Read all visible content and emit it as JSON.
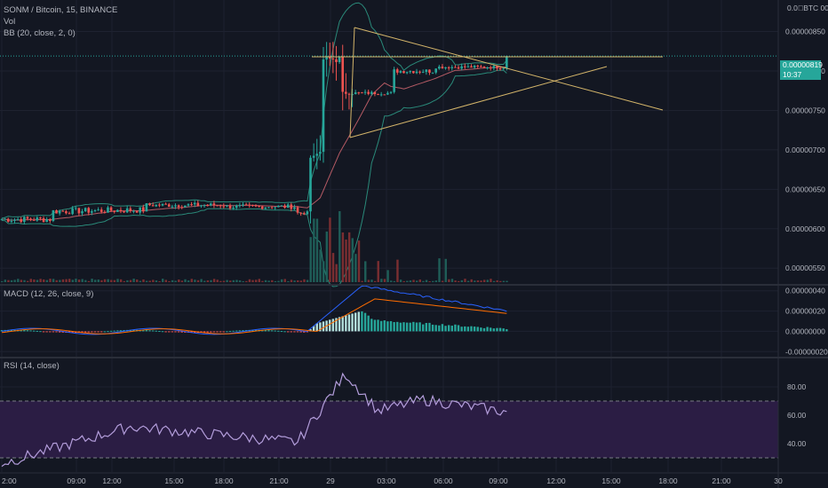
{
  "main_legend": {
    "symbol": "SONM / Bitcoin, 15, BINANCE",
    "vol": "Vol",
    "bb": "BB (20, close, 2, 0)"
  },
  "price_axis": {
    "currency_label": "0.0\u0000BTC 00",
    "ticks": [
      "0.00000850",
      "0.00000800",
      "0.00000750",
      "0.00000700",
      "0.00000650",
      "0.00000600",
      "0.00000550"
    ],
    "last_price": "0.00000819",
    "countdown": "10:37"
  },
  "macd": {
    "label": "MACD (12, 26, close, 9)",
    "ticks": [
      "0.00000040",
      "0.00000020",
      "0.00000000",
      "-0.00000020"
    ]
  },
  "rsi": {
    "label": "RSI (14, close)",
    "ticks": [
      "80.00",
      "60.00",
      "40.00"
    ]
  },
  "time_axis": {
    "ticks": [
      "2:00",
      "09:00",
      "12:00",
      "15:00",
      "18:00",
      "21:00",
      "29",
      "03:00",
      "06:00",
      "09:00",
      "12:00",
      "15:00",
      "18:00",
      "21:00",
      "30"
    ]
  },
  "colors": {
    "up": "#26a69a",
    "down": "#ef5350",
    "bb_band": "#2a8a7a",
    "bb_basis": "#b45a64",
    "macd_line": "#2962ff",
    "signal_line": "#ff6d00",
    "rsi_line": "#b39ddb",
    "rsi_band": "#2b1d44",
    "trendline": "#d4b56a",
    "last_price_line": "#26a69a"
  },
  "chart_data": {
    "type": "candlestick",
    "symbol": "SONM / Bitcoin",
    "interval": "15",
    "exchange": "BINANCE",
    "price_range": [
      5.3e-06,
      8.9e-06
    ],
    "last_price": 8.19e-06,
    "ohlc_key_points": [
      {
        "time": "day 28 02:00",
        "close": 6.12e-06
      },
      {
        "time": "day 28 12:00",
        "close": 6.2e-06
      },
      {
        "time": "day 28 15:00",
        "close": 6.45e-06
      },
      {
        "time": "day 28 21:00",
        "close": 6.2e-06
      },
      {
        "time": "day 28 23:00",
        "close": 7e-06
      },
      {
        "time": "day 29 00:30",
        "close": 8.2e-06
      },
      {
        "time": "day 29 03:00",
        "close": 7.7e-06
      },
      {
        "time": "day 29 06:00",
        "close": 8e-06
      },
      {
        "time": "day 29 09:30",
        "close": 8.19e-06
      }
    ],
    "macd_range": [
      -2.5e-07,
      4.5e-07
    ],
    "rsi_range": [
      20,
      100
    ],
    "rsi_levels": [
      70,
      30
    ],
    "rsi_key_points": [
      {
        "time": "day 28 02:00",
        "value": 26
      },
      {
        "time": "day 28 12:00",
        "value": 52
      },
      {
        "time": "day 28 21:00",
        "value": 41
      },
      {
        "time": "day 29 00:00",
        "value": 80
      },
      {
        "time": "day 29 00:45",
        "value": 89
      },
      {
        "time": "day 29 03:00",
        "value": 63
      },
      {
        "time": "day 29 06:00",
        "value": 71
      },
      {
        "time": "day 29 09:30",
        "value": 62
      }
    ],
    "grid": true,
    "legend_position": "top-left"
  }
}
